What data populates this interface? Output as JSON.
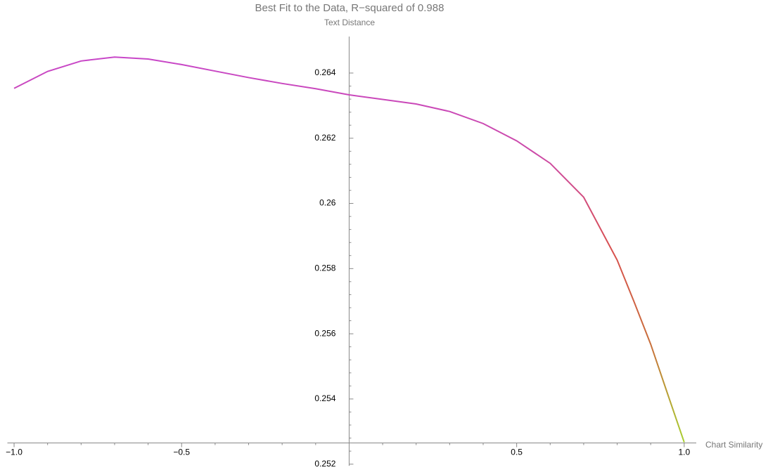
{
  "chart_data": {
    "type": "line",
    "title": "Best Fit to the Data, R−squared of 0.988",
    "y_label": "Text Distance",
    "x_label": "Chart Similarity",
    "x": [
      -1.0,
      -0.9,
      -0.8,
      -0.7,
      -0.6,
      -0.5,
      -0.4,
      -0.3,
      -0.2,
      -0.1,
      0.0,
      0.1,
      0.2,
      0.3,
      0.4,
      0.5,
      0.6,
      0.7,
      0.8,
      0.85,
      0.9,
      0.95,
      1.0
    ],
    "series": [
      {
        "colors": [
          "#c847c8",
          "#cc4aa8",
          "#d8504e",
          "#c8703a",
          "#a8d030"
        ],
        "values": [
          0.26353,
          0.26405,
          0.26437,
          0.26449,
          0.26443,
          0.26426,
          0.26406,
          0.26386,
          0.26368,
          0.26352,
          0.26333,
          0.26319,
          0.26305,
          0.26282,
          0.26245,
          0.26192,
          0.26123,
          0.26019,
          0.25826,
          0.25699,
          0.25568,
          0.25417,
          0.25267
        ]
      }
    ],
    "xlim": [
      -1.02,
      1.036
    ],
    "ylim": [
      0.25195,
      0.26512
    ],
    "axes_origin": [
      0,
      0.25265
    ],
    "xticks": [
      {
        "value": -1.0,
        "label": "−1.0"
      },
      {
        "value": -0.5,
        "label": "−0.5"
      },
      0.5,
      {
        "value": 1.0,
        "label": "1.0"
      }
    ],
    "yticks": [
      0.252,
      0.254,
      0.256,
      0.258,
      0.26,
      0.262,
      0.264
    ]
  }
}
